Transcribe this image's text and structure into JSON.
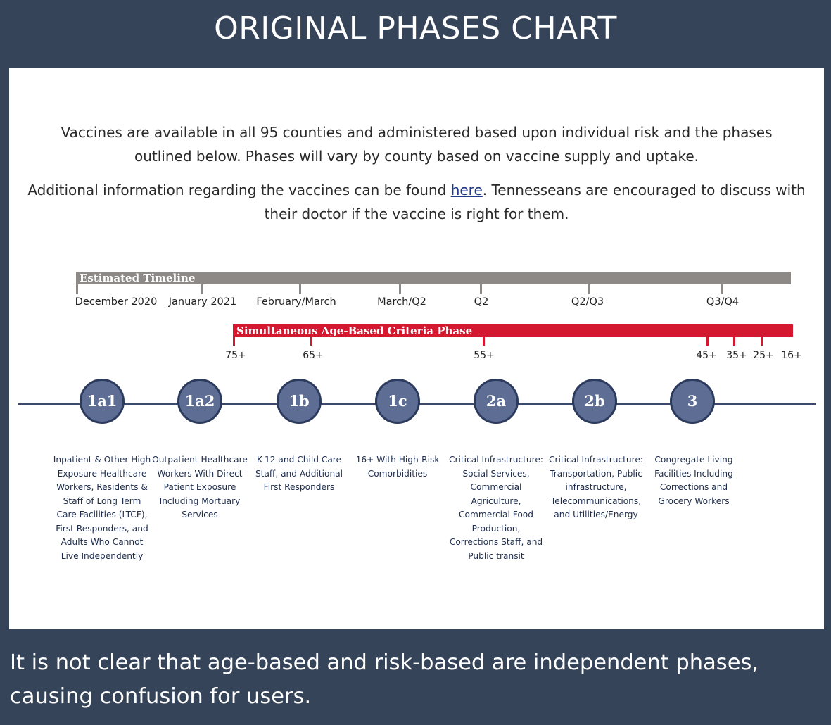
{
  "title": "ORIGINAL PHASES CHART",
  "intro": {
    "paragraph1": "Vaccines are available in all 95 counties and administered based upon individual risk and the phases outlined below. Phases will vary by county based on vaccine supply and uptake.",
    "paragraph2_before_link": "Additional information regarding the vaccines can be found ",
    "link_text": "here",
    "paragraph2_after_link": ". Tennesseans are encouraged to discuss with their doctor if the vaccine is right for them."
  },
  "timeline": {
    "label": "Estimated Timeline",
    "periods": [
      "December 2020",
      "January 2021",
      "February/March",
      "March/Q2",
      "Q2",
      "Q2/Q3",
      "Q3/Q4"
    ]
  },
  "age_phase": {
    "label": "Simultaneous Age-Based Criteria Phase",
    "ages": [
      "75+",
      "65+",
      "55+",
      "45+",
      "35+",
      "25+",
      "16+"
    ]
  },
  "phases": [
    {
      "id": "1a1",
      "description": "Inpatient & Other High Exposure Healthcare Workers, Residents & Staff of Long Term Care Facilities (LTCF), First Responders, and Adults Who Cannot Live Independently"
    },
    {
      "id": "1a2",
      "description": "Outpatient Healthcare Workers With Direct Patient Exposure Including Mortuary Services"
    },
    {
      "id": "1b",
      "description": "K-12 and Child Care Staff, and Additional First Responders"
    },
    {
      "id": "1c",
      "description": "16+ With High-Risk Comorbidities"
    },
    {
      "id": "2a",
      "description": "Critical Infrastructure: Social Services, Commercial Agriculture, Commercial Food Production, Corrections Staff, and Public transit"
    },
    {
      "id": "2b",
      "description": "Critical Infrastructure: Transportation, Public infrastructure, Telecommunications, and Utilities/Energy"
    },
    {
      "id": "3",
      "description": "Congregate Living Facilities Including Corrections and Grocery Workers"
    }
  ],
  "caption": "It is not clear that age-based and risk-based are independent phases, causing confusion for users.",
  "colors": {
    "frame": "#36445a",
    "timeline_bar": "#8d8987",
    "age_bar": "#d3182f",
    "phase_node": "#5d6d93",
    "phase_text": "#1e2d4d"
  }
}
